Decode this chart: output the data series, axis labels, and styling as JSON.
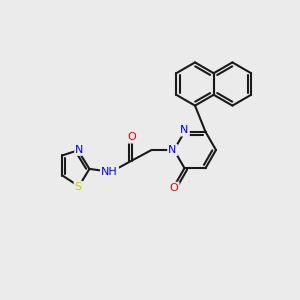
{
  "background_color": "#ebebeb",
  "bond_color": "#1a1a1a",
  "bond_width": 1.5,
  "atom_colors": {
    "N": "#0000ee",
    "O": "#ee0000",
    "S": "#cccc00",
    "C": "#1a1a1a"
  },
  "font_size": 8.0,
  "fig_width": 3.0,
  "fig_height": 3.0,
  "dpi": 100,
  "xlim": [
    0,
    10
  ],
  "ylim": [
    0,
    10
  ]
}
